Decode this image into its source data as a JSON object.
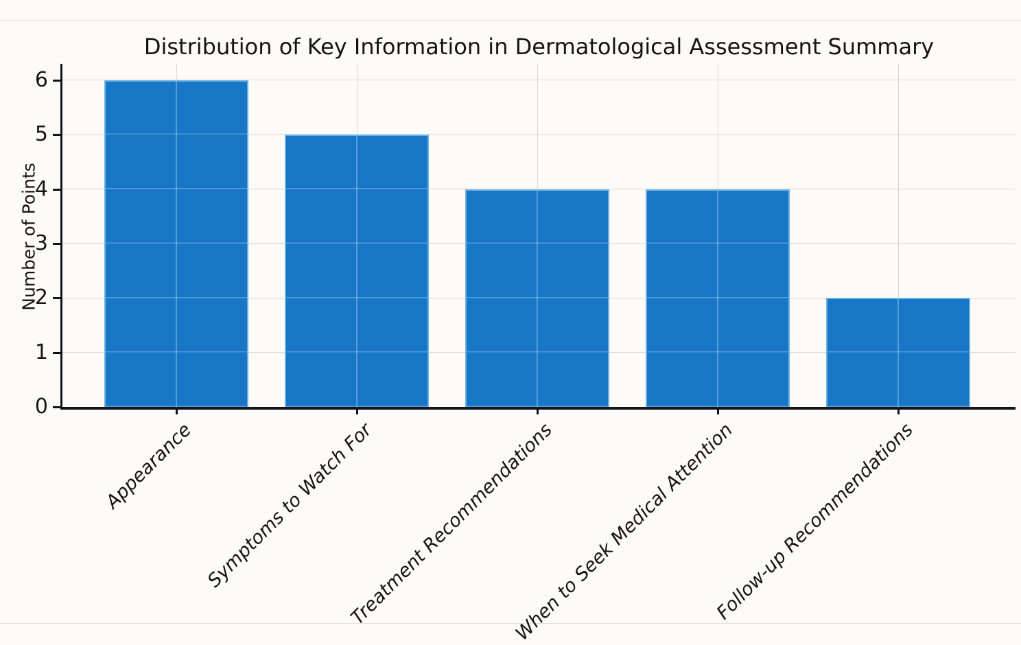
{
  "chart_data": {
    "type": "bar",
    "title": "Distribution of Key Information in Dermatological Assessment Summary",
    "xlabel": "",
    "ylabel": "Number of Points",
    "categories": [
      "Appearance",
      "Symptoms to Watch For",
      "Treatment Recommendations",
      "When to Seek Medical Attention",
      "Follow-up Recommendations"
    ],
    "values": [
      6,
      5,
      4,
      4,
      2
    ],
    "yticks": [
      0,
      1,
      2,
      3,
      4,
      5,
      6
    ],
    "ylim": [
      0,
      6.3
    ],
    "grid": true,
    "legend_position": "none",
    "x_tick_rotation_deg": 45,
    "colors": {
      "bar_fill": "#1777c6",
      "bar_edge": "#6db2e6",
      "gridline": "#d8d6d2",
      "axis": "#12141c",
      "background": "#fcfbf8",
      "text": "#141414"
    }
  }
}
